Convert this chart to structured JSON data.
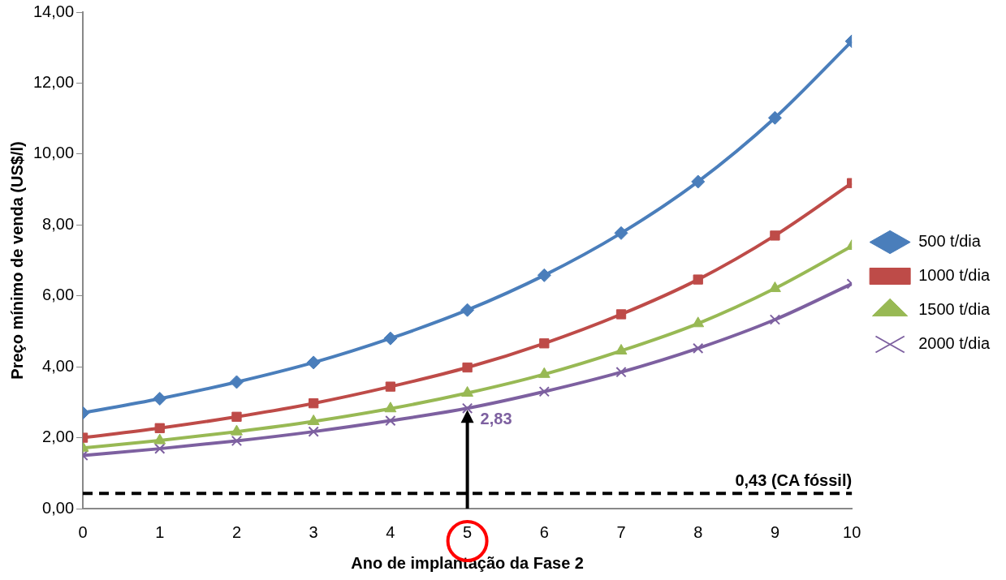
{
  "chart_data": {
    "type": "line",
    "xlabel": "Ano de implantação da Fase 2",
    "ylabel": "Preço mínimo de venda (US$/l)",
    "x": [
      0,
      1,
      2,
      3,
      4,
      5,
      6,
      7,
      8,
      9,
      10
    ],
    "xlim": [
      0,
      10
    ],
    "xticks": [
      0,
      1,
      2,
      3,
      4,
      5,
      6,
      7,
      8,
      9,
      10
    ],
    "ylim": [
      0,
      14
    ],
    "yticks": [
      {
        "value": 0,
        "label": "0,00"
      },
      {
        "value": 2,
        "label": "2,00"
      },
      {
        "value": 4,
        "label": "4,00"
      },
      {
        "value": 6,
        "label": "6,00"
      },
      {
        "value": 8,
        "label": "8,00"
      },
      {
        "value": 10,
        "label": "10,00"
      },
      {
        "value": 12,
        "label": "12,00"
      },
      {
        "value": 14,
        "label": "14,00"
      }
    ],
    "grid": false,
    "legend": "right",
    "line_style": "solid",
    "series": [
      {
        "name": "500 t/dia",
        "color": "#4a7ebb",
        "marker": "diamond",
        "values": [
          2.7,
          3.1,
          3.57,
          4.12,
          4.8,
          5.6,
          6.58,
          7.77,
          9.22,
          11.02,
          13.18
        ]
      },
      {
        "name": "1000 t/dia",
        "color": "#be4b48",
        "marker": "square",
        "values": [
          2.0,
          2.27,
          2.59,
          2.97,
          3.44,
          3.98,
          4.66,
          5.48,
          6.46,
          7.7,
          9.18
        ]
      },
      {
        "name": "1500 t/dia",
        "color": "#98b954",
        "marker": "triangle",
        "values": [
          1.71,
          1.92,
          2.17,
          2.46,
          2.82,
          3.26,
          3.79,
          4.45,
          5.22,
          6.21,
          7.4
        ]
      },
      {
        "name": "2000 t/dia",
        "color": "#7d60a0",
        "marker": "cross",
        "values": [
          1.5,
          1.69,
          1.91,
          2.17,
          2.48,
          2.83,
          3.3,
          3.85,
          4.52,
          5.33,
          6.34
        ]
      }
    ],
    "ref_lines": [
      {
        "axis": "y",
        "value": 0.43,
        "label": "0,43 (CA fóssil)",
        "color": "#000000",
        "line_style": "dashed"
      }
    ],
    "annotations": [
      {
        "text": "2,83",
        "x": 5,
        "y": 2.83
      }
    ]
  }
}
